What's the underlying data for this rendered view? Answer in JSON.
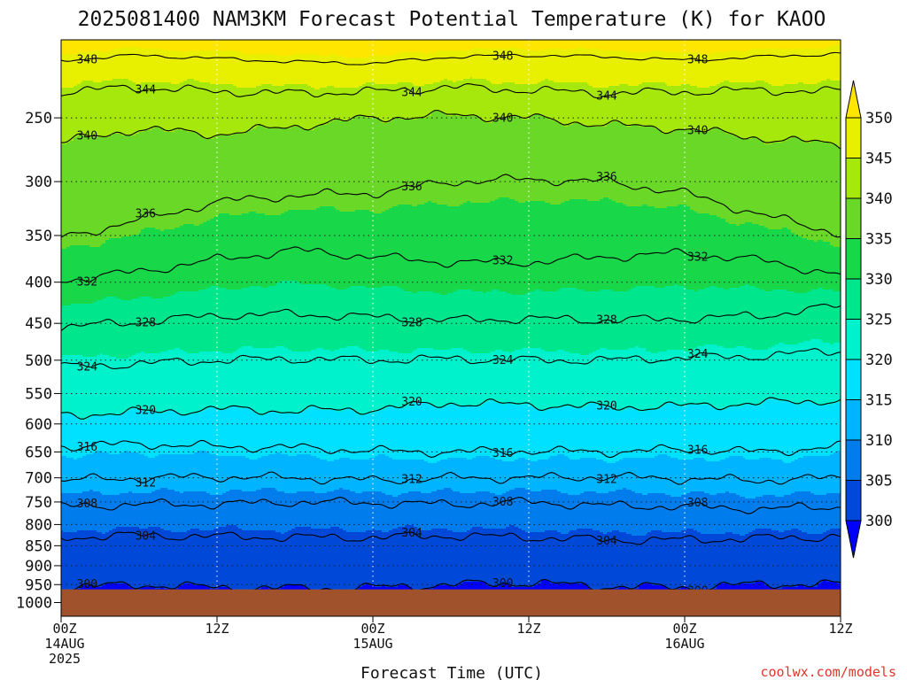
{
  "title": "2025081400 NAM3KM Forecast Potential Temperature (K) for KAOO",
  "credit": "coolwx.com/models",
  "chart_data": {
    "type": "heatmap",
    "title": "2025081400 NAM3KM Forecast Potential Temperature (K) for KAOO",
    "xlabel": "Forecast Time (UTC)",
    "ylabel": "",
    "x_ticks": [
      {
        "hour": 0,
        "lines": [
          "00Z",
          "14AUG",
          "2025"
        ]
      },
      {
        "hour": 12,
        "lines": [
          "12Z"
        ]
      },
      {
        "hour": 24,
        "lines": [
          "00Z",
          "15AUG"
        ]
      },
      {
        "hour": 36,
        "lines": [
          "12Z"
        ]
      },
      {
        "hour": 48,
        "lines": [
          "00Z",
          "16AUG"
        ]
      },
      {
        "hour": 60,
        "lines": [
          "12Z"
        ]
      }
    ],
    "xlim": [
      0,
      60
    ],
    "y_ticks": [
      250,
      300,
      350,
      400,
      450,
      500,
      550,
      600,
      650,
      700,
      750,
      800,
      850,
      900,
      950,
      1000
    ],
    "ylim": [
      1040,
      200
    ],
    "y_scale": "log-pressure",
    "grid": true,
    "surface_pressure": 963,
    "colorbar": {
      "levels": [
        300,
        305,
        310,
        315,
        320,
        325,
        330,
        335,
        340,
        345,
        350
      ],
      "colors": [
        "#0000ff",
        "#0048d8",
        "#007cec",
        "#00b4ff",
        "#00e1ff",
        "#00f2cc",
        "#00e68c",
        "#18d84a",
        "#6ad827",
        "#a7e80c",
        "#e8f000",
        "#ffe600"
      ]
    },
    "contour_interval": 4,
    "contours": [
      {
        "label": "348",
        "values": [
          [
            0,
            212
          ],
          [
            6,
            209
          ],
          [
            12,
            211
          ],
          [
            18,
            213
          ],
          [
            24,
            214
          ],
          [
            30,
            210
          ],
          [
            36,
            209
          ],
          [
            42,
            210
          ],
          [
            48,
            212
          ],
          [
            54,
            210
          ],
          [
            60,
            208
          ]
        ]
      },
      {
        "label": "344",
        "values": [
          [
            0,
            232
          ],
          [
            6,
            229
          ],
          [
            12,
            232
          ],
          [
            18,
            233
          ],
          [
            24,
            232
          ],
          [
            30,
            229
          ],
          [
            36,
            231
          ],
          [
            42,
            233
          ],
          [
            48,
            232
          ],
          [
            54,
            231
          ],
          [
            60,
            232
          ]
        ]
      },
      {
        "label": "340",
        "values": [
          [
            0,
            268
          ],
          [
            6,
            258
          ],
          [
            12,
            262
          ],
          [
            18,
            256
          ],
          [
            24,
            250
          ],
          [
            30,
            248
          ],
          [
            36,
            250
          ],
          [
            42,
            255
          ],
          [
            48,
            258
          ],
          [
            54,
            265
          ],
          [
            60,
            270
          ]
        ]
      },
      {
        "label": "336",
        "values": [
          [
            0,
            352
          ],
          [
            6,
            335
          ],
          [
            12,
            318
          ],
          [
            18,
            312
          ],
          [
            24,
            310
          ],
          [
            30,
            300
          ],
          [
            36,
            298
          ],
          [
            42,
            300
          ],
          [
            48,
            310
          ],
          [
            54,
            330
          ],
          [
            60,
            348
          ]
        ]
      },
      {
        "label": "332",
        "values": [
          [
            0,
            398
          ],
          [
            6,
            388
          ],
          [
            12,
            375
          ],
          [
            18,
            365
          ],
          [
            24,
            372
          ],
          [
            30,
            378
          ],
          [
            36,
            378
          ],
          [
            42,
            372
          ],
          [
            48,
            368
          ],
          [
            54,
            376
          ],
          [
            60,
            392
          ]
        ]
      },
      {
        "label": "328",
        "values": [
          [
            0,
            455
          ],
          [
            6,
            448
          ],
          [
            12,
            440
          ],
          [
            18,
            438
          ],
          [
            24,
            442
          ],
          [
            30,
            446
          ],
          [
            36,
            444
          ],
          [
            42,
            446
          ],
          [
            48,
            444
          ],
          [
            54,
            440
          ],
          [
            60,
            428
          ]
        ]
      },
      {
        "label": "324",
        "values": [
          [
            0,
            510
          ],
          [
            6,
            505
          ],
          [
            12,
            500
          ],
          [
            18,
            498
          ],
          [
            24,
            500
          ],
          [
            30,
            498
          ],
          [
            36,
            500
          ],
          [
            42,
            500
          ],
          [
            48,
            496
          ],
          [
            54,
            494
          ],
          [
            60,
            486
          ]
        ]
      },
      {
        "label": "320",
        "values": [
          [
            0,
            585
          ],
          [
            6,
            580
          ],
          [
            12,
            575
          ],
          [
            18,
            578
          ],
          [
            24,
            575
          ],
          [
            30,
            565
          ],
          [
            36,
            568
          ],
          [
            42,
            572
          ],
          [
            48,
            570
          ],
          [
            54,
            565
          ],
          [
            60,
            560
          ]
        ]
      },
      {
        "label": "316",
        "values": [
          [
            0,
            640
          ],
          [
            6,
            635
          ],
          [
            12,
            640
          ],
          [
            18,
            642
          ],
          [
            24,
            648
          ],
          [
            30,
            650
          ],
          [
            36,
            648
          ],
          [
            42,
            650
          ],
          [
            48,
            645
          ],
          [
            54,
            650
          ],
          [
            60,
            640
          ]
        ]
      },
      {
        "label": "312",
        "values": [
          [
            0,
            705
          ],
          [
            6,
            700
          ],
          [
            12,
            698
          ],
          [
            18,
            700
          ],
          [
            24,
            705
          ],
          [
            30,
            700
          ],
          [
            36,
            700
          ],
          [
            42,
            698
          ],
          [
            48,
            702
          ],
          [
            54,
            705
          ],
          [
            60,
            700
          ]
        ]
      },
      {
        "label": "308",
        "values": [
          [
            0,
            760
          ],
          [
            6,
            755
          ],
          [
            12,
            755
          ],
          [
            18,
            750
          ],
          [
            24,
            752
          ],
          [
            30,
            755
          ],
          [
            36,
            750
          ],
          [
            42,
            758
          ],
          [
            48,
            760
          ],
          [
            54,
            765
          ],
          [
            60,
            760
          ]
        ]
      },
      {
        "label": "304",
        "values": [
          [
            0,
            830
          ],
          [
            6,
            825
          ],
          [
            12,
            828
          ],
          [
            18,
            830
          ],
          [
            24,
            830
          ],
          [
            30,
            826
          ],
          [
            36,
            830
          ],
          [
            42,
            836
          ],
          [
            48,
            836
          ],
          [
            54,
            832
          ],
          [
            60,
            828
          ]
        ]
      },
      {
        "label": "300",
        "values": [
          [
            0,
            958
          ],
          [
            6,
            950
          ],
          [
            12,
            958
          ],
          [
            18,
            960
          ],
          [
            24,
            958
          ],
          [
            30,
            950
          ],
          [
            36,
            945
          ],
          [
            42,
            955
          ],
          [
            48,
            958
          ],
          [
            54,
            948
          ],
          [
            60,
            950
          ]
        ]
      }
    ]
  }
}
